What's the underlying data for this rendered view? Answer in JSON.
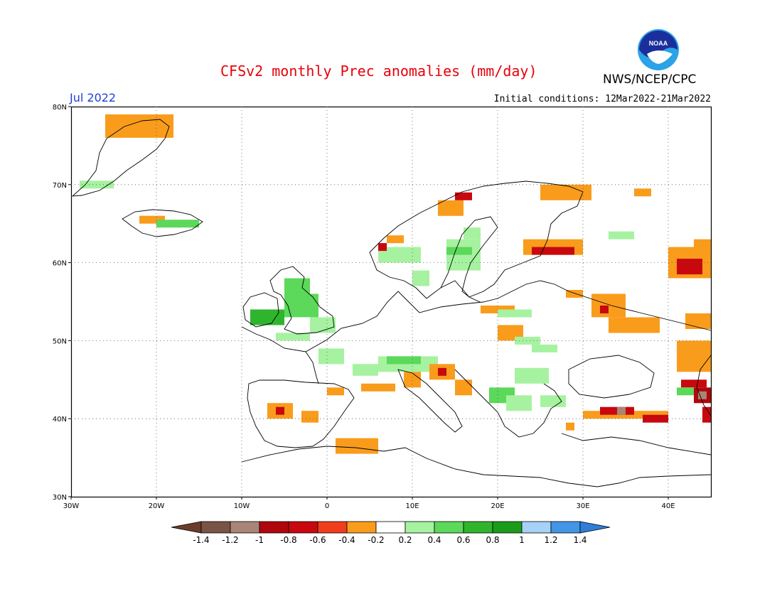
{
  "header": {
    "title": "CFSv2 monthly Prec anomalies (mm/day)",
    "agency": "NWS/NCEP/CPC",
    "month": "Jul 2022",
    "initial_conditions": "Initial conditions: 12Mar2022-21Mar2022",
    "logo_text": "NOAA"
  },
  "axes": {
    "lon_labels": [
      "30W",
      "20W",
      "10W",
      "0",
      "10E",
      "20E",
      "30E",
      "40E"
    ],
    "lon_values": [
      -30,
      -20,
      -10,
      0,
      10,
      20,
      30,
      40
    ],
    "lat_labels": [
      "80N",
      "70N",
      "60N",
      "50N",
      "40N",
      "30N"
    ],
    "lat_values": [
      80,
      70,
      60,
      50,
      40,
      30
    ],
    "lon_range": [
      -30,
      45
    ],
    "lat_range": [
      30,
      80
    ],
    "grid": "dotted"
  },
  "colorbar": {
    "labels": [
      "-1.4",
      "-1.2",
      "-1",
      "-0.8",
      "-0.6",
      "-0.4",
      "-0.2",
      "0.2",
      "0.4",
      "0.6",
      "0.8",
      "1",
      "1.2",
      "1.4"
    ],
    "colors": [
      "#7a5446",
      "#a98577",
      "#b0070d",
      "#c8080e",
      "#f03d1c",
      "#f99c1c",
      "#ffffff",
      "#a6f2a0",
      "#5cd85a",
      "#2fb52d",
      "#1a9c1a",
      "#a7d1f5",
      "#4395e6"
    ],
    "low_arrow_color": "#6b3e2b",
    "high_arrow_color": "#2f7fd8"
  },
  "colors": {
    "orange": "#f99c1c",
    "red": "#c8080e",
    "darkred": "#b0070d",
    "lightgreen": "#a6f2a0",
    "green": "#5cd85a",
    "darkgreen": "#2fb52d",
    "brown": "#a98577"
  },
  "anomaly_cells": [
    {
      "lon": -26,
      "lat": 76,
      "w": 8,
      "h": 3,
      "c": "orange"
    },
    {
      "lon": -29,
      "lat": 69.5,
      "w": 4,
      "h": 1,
      "c": "lightgreen"
    },
    {
      "lon": -22,
      "lat": 65,
      "w": 3,
      "h": 1,
      "c": "orange"
    },
    {
      "lon": -20,
      "lat": 64.5,
      "w": 5,
      "h": 1,
      "c": "green"
    },
    {
      "lon": -9,
      "lat": 52,
      "w": 4,
      "h": 2,
      "c": "darkgreen"
    },
    {
      "lon": -5,
      "lat": 56,
      "w": 3,
      "h": 2,
      "c": "green"
    },
    {
      "lon": -5,
      "lat": 53,
      "w": 4,
      "h": 3,
      "c": "green"
    },
    {
      "lon": -2,
      "lat": 51,
      "w": 3,
      "h": 2,
      "c": "lightgreen"
    },
    {
      "lon": -6,
      "lat": 50,
      "w": 4,
      "h": 1,
      "c": "lightgreen"
    },
    {
      "lon": -1,
      "lat": 47,
      "w": 3,
      "h": 2,
      "c": "lightgreen"
    },
    {
      "lon": 3,
      "lat": 45.5,
      "w": 3,
      "h": 1.5,
      "c": "lightgreen"
    },
    {
      "lon": 6,
      "lat": 46,
      "w": 7,
      "h": 2,
      "c": "lightgreen"
    },
    {
      "lon": 7,
      "lat": 47,
      "w": 4,
      "h": 1,
      "c": "green"
    },
    {
      "lon": 9,
      "lat": 44,
      "w": 2,
      "h": 2,
      "c": "orange"
    },
    {
      "lon": 12,
      "lat": 45,
      "w": 3,
      "h": 2,
      "c": "orange"
    },
    {
      "lon": 13,
      "lat": 45.5,
      "w": 1,
      "h": 1,
      "c": "red"
    },
    {
      "lon": 15,
      "lat": 43,
      "w": 2,
      "h": 2,
      "c": "orange"
    },
    {
      "lon": 4,
      "lat": 43.5,
      "w": 4,
      "h": 1,
      "c": "orange"
    },
    {
      "lon": 0,
      "lat": 43,
      "w": 2,
      "h": 1,
      "c": "orange"
    },
    {
      "lon": -7,
      "lat": 40,
      "w": 3,
      "h": 2,
      "c": "orange"
    },
    {
      "lon": -6,
      "lat": 40.5,
      "w": 1,
      "h": 1,
      "c": "red"
    },
    {
      "lon": -3,
      "lat": 39.5,
      "w": 2,
      "h": 1.5,
      "c": "orange"
    },
    {
      "lon": 1,
      "lat": 35.5,
      "w": 5,
      "h": 2,
      "c": "orange"
    },
    {
      "lon": 10,
      "lat": 57,
      "w": 2,
      "h": 2,
      "c": "lightgreen"
    },
    {
      "lon": 6,
      "lat": 60,
      "w": 5,
      "h": 2,
      "c": "lightgreen"
    },
    {
      "lon": 14,
      "lat": 59,
      "w": 4,
      "h": 4,
      "c": "lightgreen"
    },
    {
      "lon": 14,
      "lat": 61,
      "w": 3,
      "h": 1,
      "c": "green"
    },
    {
      "lon": 16,
      "lat": 63,
      "w": 2,
      "h": 1.5,
      "c": "lightgreen"
    },
    {
      "lon": 13,
      "lat": 66,
      "w": 3,
      "h": 2,
      "c": "orange"
    },
    {
      "lon": 15,
      "lat": 68,
      "w": 2,
      "h": 1,
      "c": "red"
    },
    {
      "lon": 7,
      "lat": 62.5,
      "w": 2,
      "h": 1,
      "c": "orange"
    },
    {
      "lon": 6,
      "lat": 61.5,
      "w": 1,
      "h": 1,
      "c": "red"
    },
    {
      "lon": 23,
      "lat": 61,
      "w": 7,
      "h": 2,
      "c": "orange"
    },
    {
      "lon": 24,
      "lat": 61,
      "w": 5,
      "h": 1,
      "c": "red"
    },
    {
      "lon": 25,
      "lat": 68,
      "w": 6,
      "h": 2,
      "c": "orange"
    },
    {
      "lon": 33,
      "lat": 63,
      "w": 3,
      "h": 1,
      "c": "lightgreen"
    },
    {
      "lon": 36,
      "lat": 68.5,
      "w": 2,
      "h": 1,
      "c": "orange"
    },
    {
      "lon": 18,
      "lat": 53.5,
      "w": 4,
      "h": 1,
      "c": "orange"
    },
    {
      "lon": 20,
      "lat": 53,
      "w": 4,
      "h": 1,
      "c": "lightgreen"
    },
    {
      "lon": 20,
      "lat": 50,
      "w": 3,
      "h": 2,
      "c": "orange"
    },
    {
      "lon": 22,
      "lat": 49.5,
      "w": 3,
      "h": 1,
      "c": "lightgreen"
    },
    {
      "lon": 24,
      "lat": 48.5,
      "w": 3,
      "h": 1,
      "c": "lightgreen"
    },
    {
      "lon": 22,
      "lat": 44.5,
      "w": 4,
      "h": 2,
      "c": "lightgreen"
    },
    {
      "lon": 19,
      "lat": 42,
      "w": 3,
      "h": 2,
      "c": "green"
    },
    {
      "lon": 21,
      "lat": 41,
      "w": 3,
      "h": 2,
      "c": "lightgreen"
    },
    {
      "lon": 25,
      "lat": 41.5,
      "w": 3,
      "h": 1.5,
      "c": "lightgreen"
    },
    {
      "lon": 28,
      "lat": 55.5,
      "w": 2,
      "h": 1,
      "c": "orange"
    },
    {
      "lon": 31,
      "lat": 53,
      "w": 4,
      "h": 3,
      "c": "orange"
    },
    {
      "lon": 33,
      "lat": 51,
      "w": 6,
      "h": 2,
      "c": "orange"
    },
    {
      "lon": 32,
      "lat": 53.5,
      "w": 1,
      "h": 1,
      "c": "red"
    },
    {
      "lon": 40,
      "lat": 58,
      "w": 5,
      "h": 4,
      "c": "orange"
    },
    {
      "lon": 41,
      "lat": 58.5,
      "w": 3,
      "h": 2,
      "c": "red"
    },
    {
      "lon": 43,
      "lat": 61,
      "w": 2,
      "h": 2,
      "c": "orange"
    },
    {
      "lon": 42,
      "lat": 51.5,
      "w": 3,
      "h": 2,
      "c": "orange"
    },
    {
      "lon": 41,
      "lat": 46,
      "w": 4,
      "h": 4,
      "c": "orange"
    },
    {
      "lon": 41.5,
      "lat": 44,
      "w": 3,
      "h": 1,
      "c": "red"
    },
    {
      "lon": 41,
      "lat": 43,
      "w": 2,
      "h": 1,
      "c": "green"
    },
    {
      "lon": 43,
      "lat": 42,
      "w": 2,
      "h": 2,
      "c": "darkred"
    },
    {
      "lon": 43.5,
      "lat": 42.5,
      "w": 1,
      "h": 1,
      "c": "brown"
    },
    {
      "lon": 30,
      "lat": 40,
      "w": 10,
      "h": 1,
      "c": "orange"
    },
    {
      "lon": 32,
      "lat": 40.5,
      "w": 4,
      "h": 1,
      "c": "red"
    },
    {
      "lon": 34,
      "lat": 40.5,
      "w": 1,
      "h": 1,
      "c": "brown"
    },
    {
      "lon": 37,
      "lat": 39.5,
      "w": 3,
      "h": 1,
      "c": "red"
    },
    {
      "lon": 44,
      "lat": 39.5,
      "w": 1,
      "h": 2,
      "c": "red"
    },
    {
      "lon": 28,
      "lat": 38.5,
      "w": 1,
      "h": 1,
      "c": "orange"
    }
  ]
}
